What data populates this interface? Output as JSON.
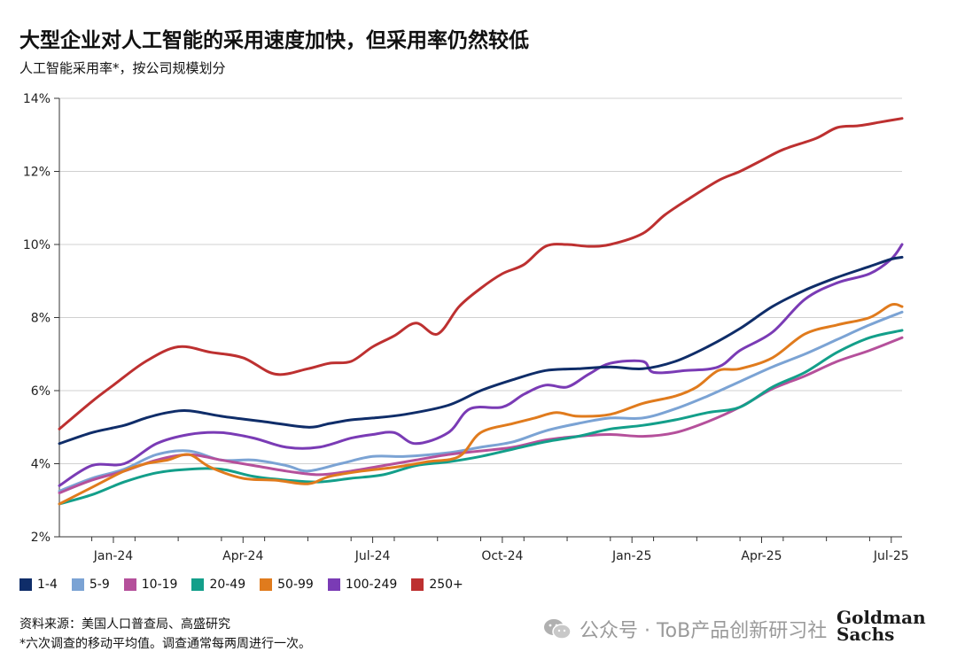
{
  "header": {
    "title": "大型企业对人工智能的采用速度加快，但采用率仍然较低",
    "subtitle": "人工智能采用率*，按公司规模划分"
  },
  "footer": {
    "source": "资料来源：美国人口普查局、高盛研究",
    "note": "*六次调查的移动平均值。调查通常每两周进行一次。",
    "watermark": "公众号 · ToB产品创新研习社",
    "watermark_icon": "wechat-icon",
    "logo_line1": "Goldman",
    "logo_line2": "Sachs"
  },
  "chart_data": {
    "type": "line",
    "x_ticks": [
      "Jan-24",
      "Apr-24",
      "Jul-24",
      "Oct-24",
      "Jan-25",
      "Apr-25",
      "Jul-25"
    ],
    "x_tick_pos": [
      2.5,
      5.5,
      8.5,
      11.5,
      14.5,
      17.5,
      20.5
    ],
    "x_range": [
      1.25,
      20.75
    ],
    "y_ticks": [
      "2%",
      "4%",
      "6%",
      "8%",
      "10%",
      "12%",
      "14%"
    ],
    "ylim": [
      2,
      14
    ],
    "grid": true,
    "legend_position": "bottom",
    "series": [
      {
        "name": "1-4",
        "color": "#0f2d69",
        "x": [
          1.25,
          2,
          2.75,
          3.25,
          3.75,
          4.25,
          5,
          6,
          7,
          7.5,
          8,
          8.5,
          9.25,
          10.25,
          11,
          11.75,
          12.5,
          13.25,
          14,
          14.75,
          15.5,
          16.25,
          17,
          17.75,
          18.5,
          19.25,
          20,
          20.5,
          20.75
        ],
        "y": [
          4.55,
          4.85,
          5.05,
          5.25,
          5.4,
          5.45,
          5.3,
          5.15,
          5.0,
          5.1,
          5.2,
          5.25,
          5.35,
          5.6,
          6.0,
          6.3,
          6.55,
          6.6,
          6.65,
          6.6,
          6.8,
          7.2,
          7.7,
          8.3,
          8.75,
          9.1,
          9.4,
          9.6,
          9.65
        ]
      },
      {
        "name": "5-9",
        "color": "#7ba3d4",
        "x": [
          1.25,
          2,
          2.75,
          3.5,
          4.25,
          5,
          5.75,
          6.5,
          7,
          7.75,
          8.5,
          9.25,
          10.25,
          11,
          11.75,
          12.5,
          13.25,
          14,
          14.75,
          15.5,
          16.25,
          17,
          17.75,
          18.5,
          19.25,
          20,
          20.75
        ],
        "y": [
          3.25,
          3.6,
          3.85,
          4.25,
          4.35,
          4.1,
          4.1,
          3.95,
          3.8,
          4.0,
          4.2,
          4.2,
          4.3,
          4.45,
          4.6,
          4.9,
          5.1,
          5.25,
          5.25,
          5.5,
          5.85,
          6.25,
          6.65,
          7.0,
          7.4,
          7.8,
          8.15
        ]
      },
      {
        "name": "10-19",
        "color": "#b5509b",
        "x": [
          1.25,
          2,
          2.75,
          3.5,
          4.25,
          5,
          5.75,
          6.5,
          7.25,
          8,
          8.75,
          9.5,
          10.25,
          11,
          11.75,
          12.5,
          13.25,
          14,
          14.75,
          15.5,
          16.25,
          17,
          17.75,
          18.5,
          19.25,
          20,
          20.75
        ],
        "y": [
          3.2,
          3.55,
          3.8,
          4.1,
          4.25,
          4.1,
          3.95,
          3.8,
          3.7,
          3.8,
          3.95,
          4.1,
          4.25,
          4.35,
          4.45,
          4.65,
          4.75,
          4.8,
          4.75,
          4.85,
          5.15,
          5.55,
          6.05,
          6.4,
          6.8,
          7.1,
          7.45
        ]
      },
      {
        "name": "20-49",
        "color": "#139f8a",
        "x": [
          1.25,
          2,
          2.75,
          3.5,
          4.25,
          5,
          5.75,
          6.5,
          7.25,
          8,
          8.75,
          9.5,
          10.25,
          11,
          11.75,
          12.5,
          13.25,
          14,
          14.75,
          15.5,
          16.25,
          17,
          17.75,
          18.5,
          19.25,
          20,
          20.75
        ],
        "y": [
          2.9,
          3.15,
          3.5,
          3.75,
          3.85,
          3.85,
          3.65,
          3.55,
          3.5,
          3.6,
          3.7,
          3.95,
          4.05,
          4.2,
          4.4,
          4.6,
          4.75,
          4.95,
          5.05,
          5.2,
          5.4,
          5.55,
          6.1,
          6.5,
          7.05,
          7.45,
          7.65
        ]
      },
      {
        "name": "50-99",
        "color": "#e07b1d",
        "x": [
          1.25,
          2,
          2.75,
          3.25,
          3.75,
          4.25,
          4.75,
          5.5,
          6.25,
          7,
          7.5,
          8.25,
          9,
          9.75,
          10.5,
          11,
          11.75,
          12.25,
          12.75,
          13.25,
          14,
          14.75,
          15.5,
          16,
          16.5,
          17,
          17.75,
          18.5,
          19.25,
          20,
          20.5,
          20.75
        ],
        "y": [
          2.9,
          3.35,
          3.8,
          4.0,
          4.1,
          4.25,
          3.9,
          3.6,
          3.55,
          3.45,
          3.65,
          3.8,
          3.9,
          4.05,
          4.2,
          4.85,
          5.1,
          5.25,
          5.4,
          5.3,
          5.35,
          5.65,
          5.85,
          6.1,
          6.55,
          6.6,
          6.9,
          7.55,
          7.8,
          8.0,
          8.35,
          8.3
        ]
      },
      {
        "name": "100-249",
        "color": "#7a3bb5",
        "x": [
          1.25,
          2,
          2.75,
          3.5,
          4.25,
          5,
          5.75,
          6.5,
          7.25,
          8,
          8.5,
          9,
          9.5,
          10.25,
          10.75,
          11.5,
          12,
          12.5,
          13,
          13.5,
          14,
          14.75,
          15,
          15.75,
          16.5,
          17,
          17.75,
          18.5,
          19.25,
          20,
          20.5,
          20.75
        ],
        "y": [
          3.4,
          3.95,
          4.0,
          4.55,
          4.8,
          4.85,
          4.7,
          4.45,
          4.45,
          4.7,
          4.8,
          4.85,
          4.55,
          4.85,
          5.5,
          5.55,
          5.9,
          6.15,
          6.1,
          6.45,
          6.75,
          6.8,
          6.5,
          6.55,
          6.65,
          7.1,
          7.6,
          8.5,
          8.95,
          9.2,
          9.6,
          10.0
        ]
      },
      {
        "name": "250+",
        "color": "#bd3030",
        "x": [
          1.25,
          2,
          2.5,
          3.25,
          4,
          4.75,
          5.5,
          6.25,
          7,
          7.5,
          8,
          8.5,
          9,
          9.5,
          10,
          10.5,
          11,
          11.5,
          12,
          12.5,
          13,
          13.5,
          14,
          14.75,
          15.25,
          15.75,
          16.5,
          17,
          17.5,
          18,
          18.75,
          19.25,
          19.75,
          20.25,
          20.75
        ],
        "y": [
          4.95,
          5.7,
          6.15,
          6.8,
          7.2,
          7.05,
          6.9,
          6.45,
          6.6,
          6.75,
          6.8,
          7.2,
          7.5,
          7.85,
          7.55,
          8.3,
          8.8,
          9.2,
          9.45,
          9.95,
          10.0,
          9.95,
          10.0,
          10.3,
          10.8,
          11.2,
          11.75,
          12.0,
          12.3,
          12.6,
          12.9,
          13.2,
          13.25,
          13.35,
          13.45
        ]
      }
    ]
  }
}
